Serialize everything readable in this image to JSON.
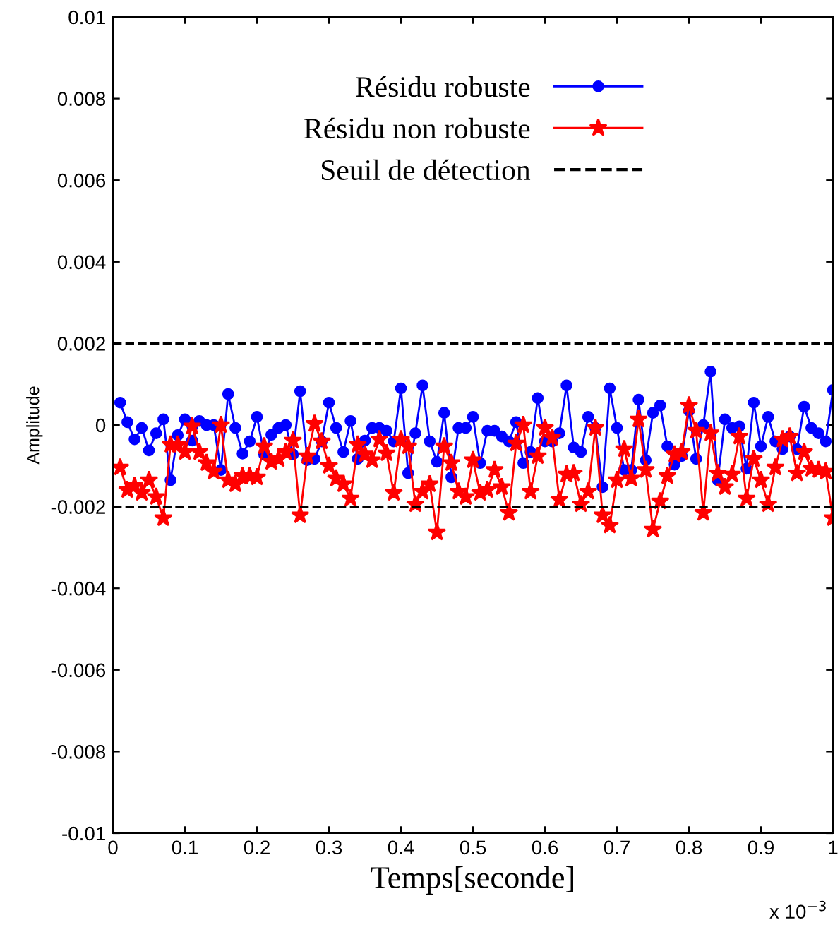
{
  "chart_data": {
    "type": "line",
    "xlabel": "Temps[seconde]",
    "ylabel": "Amplitude",
    "x": [
      0.01,
      0.02,
      0.03,
      0.04,
      0.05,
      0.06,
      0.07,
      0.08,
      0.09,
      0.1,
      0.11,
      0.12,
      0.13,
      0.14,
      0.15,
      0.16,
      0.17,
      0.18,
      0.19,
      0.2,
      0.21,
      0.22,
      0.23,
      0.24,
      0.25,
      0.26,
      0.27,
      0.28,
      0.29,
      0.3,
      0.31,
      0.32,
      0.33,
      0.34,
      0.35,
      0.36,
      0.37,
      0.38,
      0.39,
      0.4,
      0.41,
      0.42,
      0.43,
      0.44,
      0.45,
      0.46,
      0.47,
      0.48,
      0.49,
      0.5,
      0.51,
      0.52,
      0.53,
      0.54,
      0.55,
      0.56,
      0.57,
      0.58,
      0.59,
      0.6,
      0.61,
      0.62,
      0.63,
      0.64,
      0.65,
      0.66,
      0.67,
      0.68,
      0.69,
      0.7,
      0.71,
      0.72,
      0.73,
      0.74,
      0.75,
      0.76,
      0.77,
      0.78,
      0.79,
      0.8,
      0.81,
      0.82,
      0.83,
      0.84,
      0.85,
      0.86,
      0.87,
      0.88,
      0.89,
      0.9,
      0.91,
      0.92,
      0.93,
      0.94,
      0.95,
      0.96,
      0.97,
      0.98,
      0.99,
      1.0
    ],
    "series": [
      {
        "name": "Résidu robuste",
        "color": "#0000ff",
        "marker": "circle",
        "values": [
          0.00055,
          7e-05,
          -0.00035,
          -7e-05,
          -0.00062,
          -0.0002,
          0.00014,
          -0.00135,
          -0.00025,
          0.00014,
          -0.00038,
          0.0001,
          0.0,
          0.0,
          -0.0011,
          0.00076,
          -7e-05,
          -0.0007,
          -0.0004,
          0.0002,
          -0.00072,
          -0.00024,
          -7e-05,
          0.0,
          -0.00072,
          0.00083,
          -0.00086,
          -0.00083,
          -0.0004,
          0.00055,
          -7e-05,
          -0.00066,
          0.0001,
          -0.00083,
          -0.00038,
          -7e-05,
          -7e-05,
          -0.00014,
          -0.0004,
          0.0009,
          -0.00118,
          -0.0002,
          0.00097,
          -0.0004,
          -0.0009,
          0.0003,
          -0.00128,
          -7e-05,
          -7e-05,
          0.0002,
          -0.00093,
          -0.00014,
          -0.00014,
          -0.00028,
          -0.0004,
          7e-05,
          -0.00093,
          -0.00066,
          0.00066,
          -0.0004,
          -0.0004,
          -0.0002,
          0.00097,
          -0.00055,
          -0.00066,
          0.0002,
          -7e-05,
          -0.00152,
          0.0009,
          -7e-05,
          -0.0011,
          -0.0011,
          0.00062,
          -0.00086,
          0.0003,
          0.00048,
          -0.00052,
          -0.00097,
          -0.00076,
          0.00035,
          -0.00083,
          0.0,
          0.00131,
          -0.00135,
          0.00014,
          -7e-05,
          -3e-05,
          -0.00107,
          0.00055,
          -0.00052,
          0.0002,
          -0.0004,
          -0.00059,
          -0.00028,
          -0.00059,
          0.00045,
          -7e-05,
          -0.0002,
          -0.0004,
          0.00086
        ]
      },
      {
        "name": "Résidu non robuste",
        "color": "#ff0000",
        "marker": "star",
        "values": [
          -0.00104,
          -0.00159,
          -0.00149,
          -0.00166,
          -0.00135,
          -0.00176,
          -0.00228,
          -0.00048,
          -0.00048,
          -0.00066,
          -3e-05,
          -0.00066,
          -0.00093,
          -0.00114,
          0.0,
          -0.00135,
          -0.00145,
          -0.00125,
          -0.00125,
          -0.00128,
          -0.00052,
          -0.0009,
          -0.00083,
          -0.00066,
          -0.00038,
          -0.00221,
          -0.00076,
          3e-05,
          -0.0004,
          -0.001,
          -0.00131,
          -0.00145,
          -0.0018,
          -0.00048,
          -0.00072,
          -0.00086,
          -0.00035,
          -0.00069,
          -0.00166,
          -0.00035,
          -0.00052,
          -0.00194,
          -0.00163,
          -0.00145,
          -0.00263,
          -0.00052,
          -0.00093,
          -0.00163,
          -0.00176,
          -0.00086,
          -0.00166,
          -0.00159,
          -0.0011,
          -0.00152,
          -0.00215,
          -0.00045,
          0.0,
          -0.00163,
          -0.00076,
          -7e-05,
          -0.00031,
          -0.00183,
          -0.00121,
          -0.00118,
          -0.00194,
          -0.00163,
          -7e-05,
          -0.00221,
          -0.00246,
          -0.00135,
          -0.00059,
          -0.00131,
          0.00014,
          -0.0011,
          -0.00256,
          -0.00187,
          -0.00125,
          -0.00072,
          -0.00066,
          0.00048,
          -0.00014,
          -0.00215,
          -0.0002,
          -0.00118,
          -0.00152,
          -0.00121,
          -0.00028,
          -0.0018,
          -0.00083,
          -0.00135,
          -0.00194,
          -0.00104,
          -0.00035,
          -0.00028,
          -0.00118,
          -0.00066,
          -0.00107,
          -0.0011,
          -0.00114,
          -0.00228
        ]
      }
    ],
    "ref_lines": [
      {
        "axis": "y",
        "value": 0.002,
        "label": "Seuil de détection",
        "color": "#000000",
        "line_style": "dashed"
      },
      {
        "axis": "y",
        "value": -0.002,
        "color": "#000000",
        "line_style": "dashed"
      }
    ],
    "xlim": [
      0,
      1
    ],
    "xticks": [
      0,
      0.1,
      0.2,
      0.3,
      0.4,
      0.5,
      0.6,
      0.7,
      0.8,
      0.9,
      1
    ],
    "ylim": [
      -0.01,
      0.01
    ],
    "yticks": [
      -0.01,
      -0.008,
      -0.006,
      -0.004,
      -0.002,
      0,
      0.002,
      0.004,
      0.006,
      0.008,
      0.01
    ],
    "annotations": [
      "x 10$^{−3}$"
    ],
    "grid": false,
    "legend": "top",
    "line_style": "solid"
  }
}
